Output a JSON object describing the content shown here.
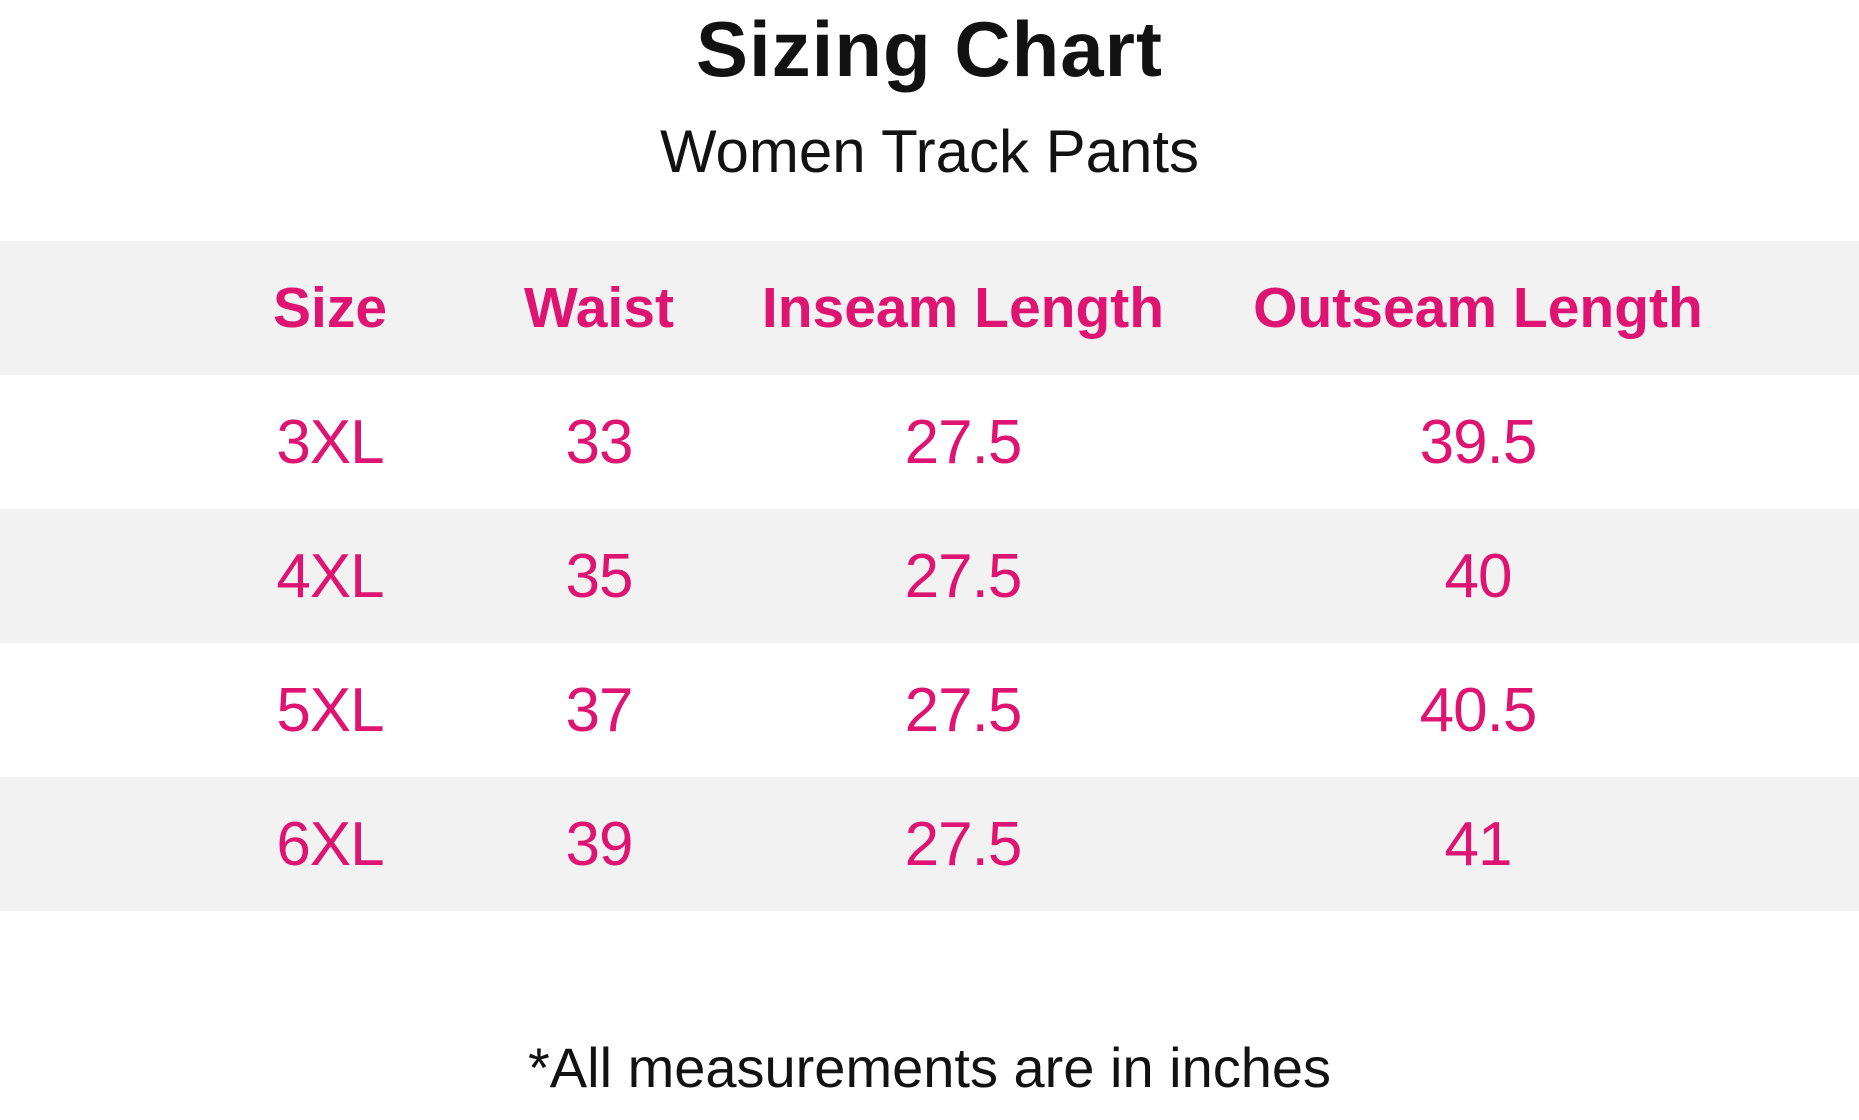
{
  "page": {
    "title": "Sizing Chart",
    "subtitle": "Women Track Pants",
    "footnote": "*All measurements are in inches"
  },
  "colors": {
    "accent_pink": "#DE1372",
    "stripe_gray": "#F2F2F3",
    "text_black": "#121212"
  },
  "table": {
    "columns": [
      "Size",
      "Waist",
      "Inseam Length",
      "Outseam Length"
    ],
    "rows": [
      [
        "3XL",
        "33",
        "27.5",
        "39.5"
      ],
      [
        "4XL",
        "35",
        "27.5",
        "40"
      ],
      [
        "5XL",
        "37",
        "27.5",
        "40.5"
      ],
      [
        "6XL",
        "39",
        "27.5",
        "41"
      ]
    ]
  },
  "chart_data": {
    "type": "table",
    "title": "Sizing Chart",
    "subtitle": "Women Track Pants",
    "columns": [
      "Size",
      "Waist",
      "Inseam Length",
      "Outseam Length"
    ],
    "rows": [
      {
        "size": "3XL",
        "waist": 33,
        "inseam_length": 27.5,
        "outseam_length": 39.5
      },
      {
        "size": "4XL",
        "waist": 35,
        "inseam_length": 27.5,
        "outseam_length": 40
      },
      {
        "size": "5XL",
        "waist": 37,
        "inseam_length": 27.5,
        "outseam_length": 40.5
      },
      {
        "size": "6XL",
        "waist": 39,
        "inseam_length": 27.5,
        "outseam_length": 41
      }
    ],
    "units": "inches",
    "footnote": "*All measurements are in inches",
    "layout": {
      "header_background": "#F2F2F3",
      "row_striping": "alternating gray/white",
      "text_color": "#DE1372"
    }
  }
}
